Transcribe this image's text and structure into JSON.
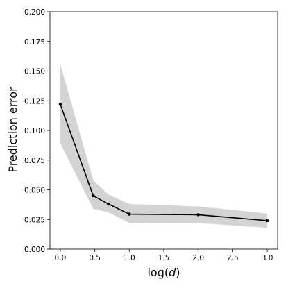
{
  "chart_data": {
    "type": "line",
    "title": "",
    "xlabel": {
      "prefix": "log(",
      "variable": "d",
      "suffix": ")"
    },
    "ylabel": "Prediction error",
    "xlim": [
      -0.15,
      3.15
    ],
    "ylim": [
      0.0,
      0.2
    ],
    "xticks": [
      0.0,
      0.5,
      1.0,
      1.5,
      2.0,
      2.5,
      3.0
    ],
    "xtick_labels": [
      "0.0",
      "0.5",
      "1.0",
      "1.5",
      "2.0",
      "2.5",
      "3.0"
    ],
    "yticks": [
      0.0,
      0.025,
      0.05,
      0.075,
      0.1,
      0.125,
      0.15,
      0.175,
      0.2
    ],
    "ytick_labels": [
      "0.000",
      "0.025",
      "0.050",
      "0.075",
      "0.100",
      "0.125",
      "0.150",
      "0.175",
      "0.200"
    ],
    "grid": false,
    "legend": "none",
    "series": [
      {
        "x": [
          0.0,
          0.477,
          0.699,
          1.0,
          2.0,
          3.0
        ],
        "y": [
          0.122,
          0.045,
          0.038,
          0.0295,
          0.029,
          0.024
        ],
        "lower": [
          0.089,
          0.034,
          0.031,
          0.022,
          0.022,
          0.018
        ],
        "upper": [
          0.156,
          0.058,
          0.046,
          0.038,
          0.036,
          0.03
        ],
        "line_color": "#000000",
        "band_color": "#d3d3d3"
      }
    ]
  }
}
